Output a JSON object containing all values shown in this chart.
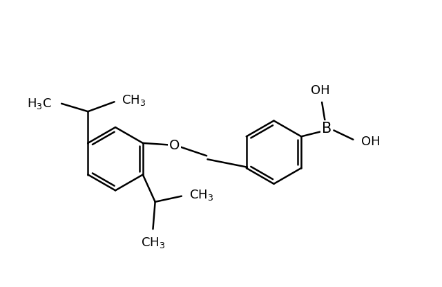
{
  "background_color": "#ffffff",
  "line_color": "#000000",
  "line_width": 1.8,
  "font_size": 13,
  "fig_width": 6.4,
  "fig_height": 4.15,
  "dpi": 100,
  "xlim": [
    0,
    10
  ],
  "ylim": [
    0,
    6.5
  ]
}
